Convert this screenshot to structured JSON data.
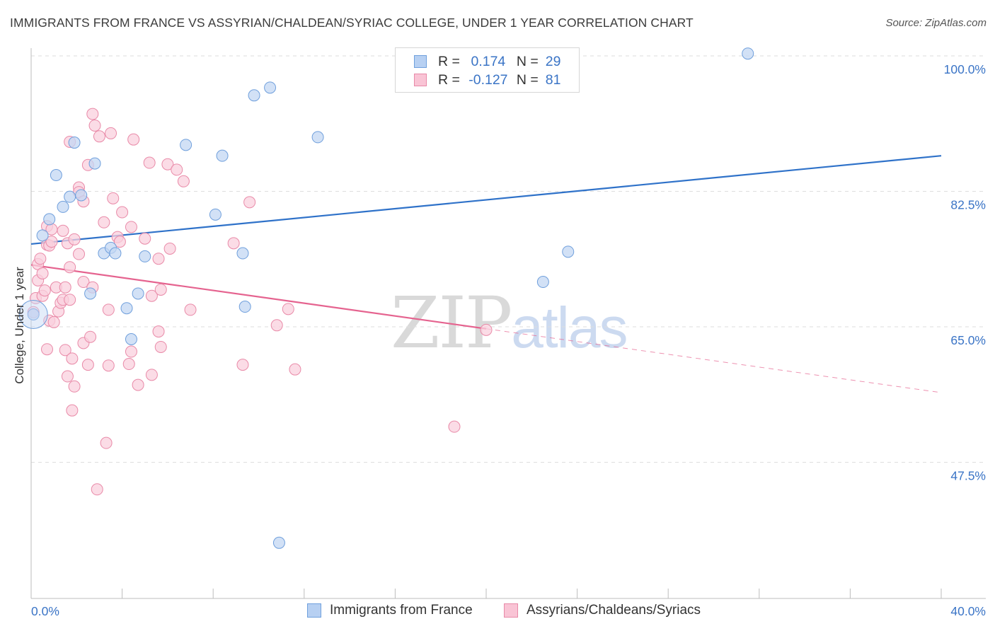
{
  "header": {
    "title": "IMMIGRANTS FROM FRANCE VS ASSYRIAN/CHALDEAN/SYRIAC COLLEGE, UNDER 1 YEAR CORRELATION CHART",
    "source": "Source: ZipAtlas.com"
  },
  "watermark": {
    "zip": "ZIP",
    "atlas": "atlas"
  },
  "legend": {
    "r_label": "R =",
    "n_label": "N =",
    "rows": [
      {
        "r": "0.174",
        "n": "29",
        "fill": "#b7d0f2",
        "stroke": "#6fa0dd"
      },
      {
        "r": "-0.127",
        "n": "81",
        "fill": "#f9c4d5",
        "stroke": "#e889a8"
      }
    ]
  },
  "colors": {
    "blue_point_fill": "#c3d7f3",
    "blue_point_stroke": "#6f9fdc",
    "pink_point_fill": "#fad0dd",
    "pink_point_stroke": "#e98aa8",
    "blue_line": "#2f72c9",
    "pink_line": "#e5638f",
    "grid": "#dedede",
    "tick_label": "#3a74c6"
  },
  "chart_data": {
    "type": "scatter",
    "title": "IMMIGRANTS FROM FRANCE VS ASSYRIAN/CHALDEAN/SYRIAC COLLEGE, UNDER 1 YEAR CORRELATION CHART",
    "xlabel": "",
    "ylabel": "College, Under 1 year",
    "xlim": [
      0,
      40
    ],
    "ylim": [
      32,
      100.8
    ],
    "x_tick_labels": [
      {
        "value": 0,
        "label": "0.0%"
      },
      {
        "value": 40,
        "label": "40.0%"
      }
    ],
    "y_tick_labels": [
      {
        "value": 100,
        "label": "100.0%"
      },
      {
        "value": 82.5,
        "label": "82.5%"
      },
      {
        "value": 65,
        "label": "65.0%"
      },
      {
        "value": 47.5,
        "label": "47.5%"
      }
    ],
    "grid": true,
    "legend_position": "top-center",
    "series": [
      {
        "name": "Immigrants from France",
        "color": "#6f9fdc",
        "r": 0.174,
        "n": 29,
        "trend": {
          "x": [
            0,
            40
          ],
          "y": [
            75.7,
            87.1
          ],
          "dashed_from": null
        },
        "points": [
          [
            0.1,
            66.6
          ],
          [
            0.5,
            76.8
          ],
          [
            0.8,
            78.9
          ],
          [
            1.1,
            84.6
          ],
          [
            1.4,
            80.5
          ],
          [
            1.7,
            81.8
          ],
          [
            1.9,
            88.8
          ],
          [
            2.2,
            82.0
          ],
          [
            2.6,
            69.3
          ],
          [
            2.8,
            86.1
          ],
          [
            3.2,
            74.5
          ],
          [
            3.5,
            75.2
          ],
          [
            3.7,
            74.5
          ],
          [
            4.2,
            67.4
          ],
          [
            4.4,
            63.4
          ],
          [
            4.7,
            69.3
          ],
          [
            5.0,
            74.1
          ],
          [
            6.8,
            88.5
          ],
          [
            8.1,
            79.5
          ],
          [
            8.4,
            87.1
          ],
          [
            9.3,
            74.5
          ],
          [
            9.4,
            67.6
          ],
          [
            9.8,
            94.9
          ],
          [
            10.5,
            95.9
          ],
          [
            10.9,
            37.1
          ],
          [
            12.6,
            89.5
          ],
          [
            22.5,
            70.8
          ],
          [
            23.6,
            74.7
          ],
          [
            31.5,
            100.3
          ]
        ]
      },
      {
        "name": "Assyrians/Chaldeans/Syriacs",
        "color": "#e98aa8",
        "r": -0.127,
        "n": 81,
        "trend": {
          "x": [
            0,
            40
          ],
          "y": [
            73.0,
            56.5
          ],
          "dashed_from": 20
        },
        "points": [
          [
            0.1,
            66.9
          ],
          [
            0.2,
            68.7
          ],
          [
            0.3,
            71.0
          ],
          [
            0.3,
            73.1
          ],
          [
            0.4,
            73.8
          ],
          [
            0.5,
            71.9
          ],
          [
            0.5,
            69.0
          ],
          [
            0.6,
            69.7
          ],
          [
            0.7,
            78.0
          ],
          [
            0.7,
            75.6
          ],
          [
            0.8,
            75.5
          ],
          [
            0.7,
            62.1
          ],
          [
            0.8,
            65.8
          ],
          [
            0.9,
            77.6
          ],
          [
            0.9,
            76.0
          ],
          [
            1.0,
            65.6
          ],
          [
            1.1,
            70.1
          ],
          [
            1.2,
            67.0
          ],
          [
            1.3,
            68.1
          ],
          [
            1.4,
            68.5
          ],
          [
            1.4,
            77.4
          ],
          [
            1.5,
            62.0
          ],
          [
            1.5,
            70.1
          ],
          [
            1.6,
            58.6
          ],
          [
            1.6,
            75.8
          ],
          [
            1.7,
            72.7
          ],
          [
            1.7,
            88.9
          ],
          [
            1.7,
            68.5
          ],
          [
            1.8,
            60.9
          ],
          [
            1.8,
            54.2
          ],
          [
            1.9,
            76.3
          ],
          [
            1.9,
            57.3
          ],
          [
            2.1,
            74.4
          ],
          [
            2.1,
            83.0
          ],
          [
            2.1,
            82.4
          ],
          [
            2.3,
            81.2
          ],
          [
            2.3,
            70.8
          ],
          [
            2.3,
            62.9
          ],
          [
            2.5,
            60.1
          ],
          [
            2.5,
            85.9
          ],
          [
            2.6,
            63.7
          ],
          [
            2.7,
            70.1
          ],
          [
            2.7,
            92.5
          ],
          [
            2.8,
            91.0
          ],
          [
            2.9,
            44.0
          ],
          [
            3.0,
            89.6
          ],
          [
            3.2,
            78.5
          ],
          [
            3.3,
            50.0
          ],
          [
            3.4,
            67.2
          ],
          [
            3.4,
            60.0
          ],
          [
            3.5,
            90.0
          ],
          [
            3.6,
            81.6
          ],
          [
            3.8,
            76.6
          ],
          [
            3.9,
            76.0
          ],
          [
            4.0,
            79.8
          ],
          [
            4.3,
            60.2
          ],
          [
            4.4,
            77.9
          ],
          [
            4.4,
            61.8
          ],
          [
            4.5,
            89.2
          ],
          [
            4.7,
            57.5
          ],
          [
            5.0,
            76.4
          ],
          [
            5.2,
            86.2
          ],
          [
            5.3,
            58.8
          ],
          [
            5.3,
            69.0
          ],
          [
            5.6,
            73.8
          ],
          [
            5.6,
            64.4
          ],
          [
            5.7,
            62.4
          ],
          [
            5.7,
            69.8
          ],
          [
            6.0,
            86.0
          ],
          [
            6.1,
            75.1
          ],
          [
            6.4,
            85.3
          ],
          [
            6.7,
            83.8
          ],
          [
            7.0,
            67.2
          ],
          [
            8.9,
            75.8
          ],
          [
            9.3,
            60.1
          ],
          [
            9.6,
            81.1
          ],
          [
            10.8,
            65.2
          ],
          [
            11.3,
            67.3
          ],
          [
            11.6,
            59.5
          ],
          [
            18.6,
            52.1
          ],
          [
            20.0,
            64.6
          ]
        ]
      }
    ]
  },
  "bottom_legend": [
    {
      "label": "Immigrants from France"
    },
    {
      "label": "Assyrians/Chaldeans/Syriacs"
    }
  ]
}
